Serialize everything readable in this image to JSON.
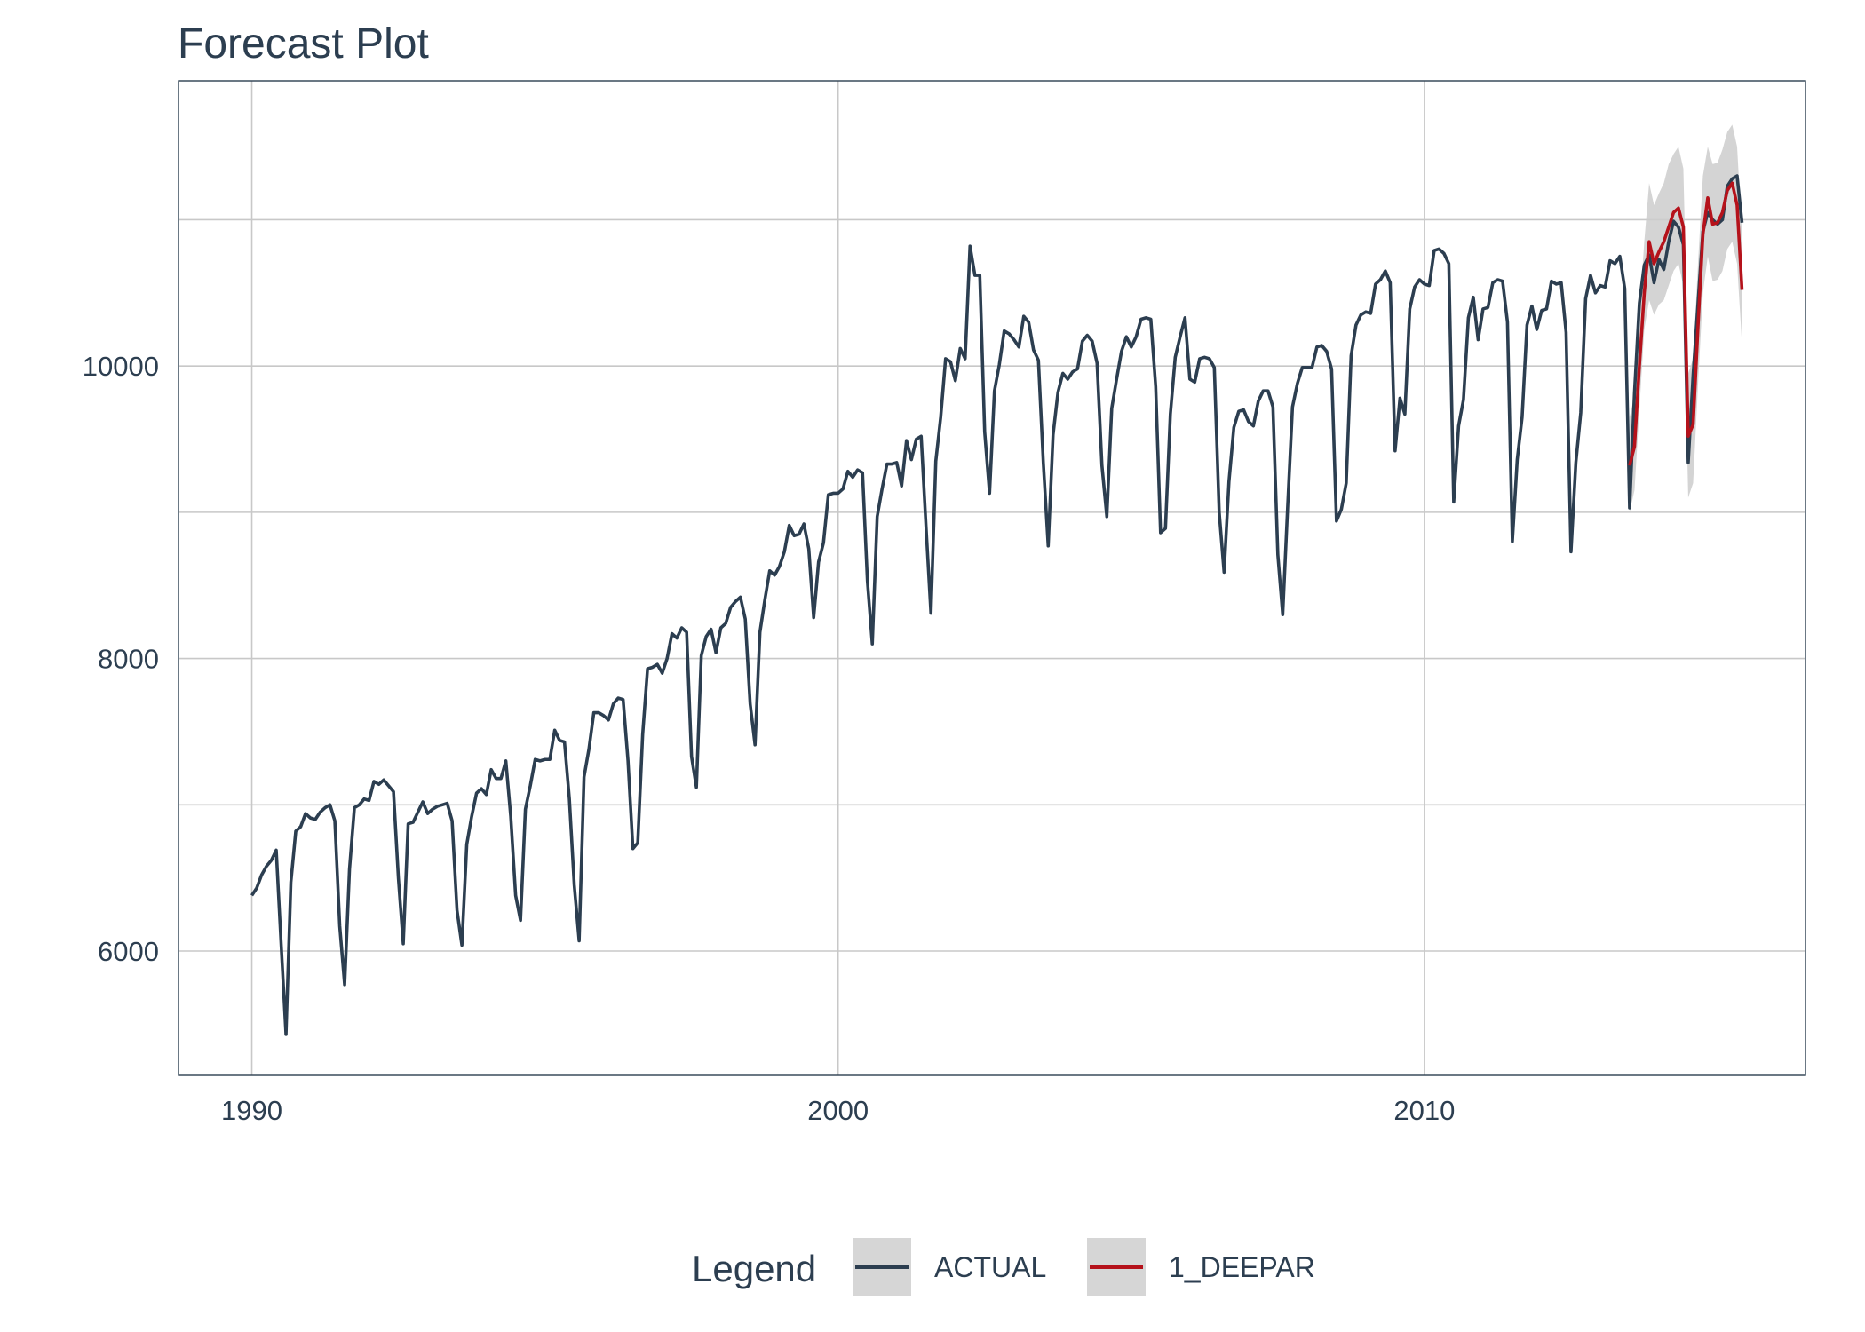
{
  "chart_data": {
    "type": "line",
    "title": "Forecast Plot",
    "xlabel": "",
    "ylabel": "",
    "xlim": [
      1988.75,
      2016.5
    ],
    "ylim": [
      5150,
      11950
    ],
    "x_ticks": [
      1990,
      2000,
      2010
    ],
    "x_tick_labels": [
      "1990",
      "2000",
      "2010"
    ],
    "y_ticks": [
      6000,
      8000,
      10000
    ],
    "y_tick_labels": [
      "6000",
      "8000",
      "10000"
    ],
    "y_minor_gridlines": [
      7000,
      9000,
      11000
    ],
    "grid": true,
    "legend": {
      "title": "Legend",
      "position": "bottom",
      "entries": [
        {
          "label": "ACTUAL",
          "color": "#2c3e50"
        },
        {
          "label": "1_DEEPAR",
          "color": "#b5121b"
        }
      ]
    },
    "series": [
      {
        "name": "ACTUAL",
        "color": "#2c3e50",
        "x_start": 1990.0,
        "x_step_months": 1,
        "values": [
          6380,
          6430,
          6520,
          6580,
          6620,
          6690,
          6050,
          5430,
          6470,
          6820,
          6850,
          6940,
          6910,
          6900,
          6950,
          6980,
          7000,
          6890,
          6170,
          5770,
          6560,
          6980,
          7000,
          7040,
          7030,
          7160,
          7140,
          7170,
          7130,
          7090,
          6500,
          6050,
          6870,
          6880,
          6950,
          7020,
          6940,
          6970,
          6990,
          7000,
          7010,
          6890,
          6280,
          6040,
          6730,
          6920,
          7080,
          7110,
          7070,
          7240,
          7180,
          7180,
          7300,
          6920,
          6380,
          6210,
          6970,
          7130,
          7310,
          7300,
          7310,
          7310,
          7510,
          7440,
          7430,
          7040,
          6450,
          6070,
          7190,
          7380,
          7630,
          7630,
          7610,
          7580,
          7690,
          7730,
          7720,
          7300,
          6700,
          6740,
          7480,
          7930,
          7940,
          7960,
          7900,
          8000,
          8170,
          8140,
          8210,
          8180,
          7330,
          7120,
          8020,
          8150,
          8200,
          8040,
          8210,
          8240,
          8350,
          8390,
          8420,
          8270,
          7690,
          7410,
          8180,
          8400,
          8600,
          8570,
          8630,
          8730,
          8910,
          8840,
          8850,
          8920,
          8750,
          8280,
          8660,
          8790,
          9120,
          9130,
          9130,
          9160,
          9280,
          9240,
          9290,
          9270,
          8530,
          8100,
          8970,
          9160,
          9330,
          9330,
          9340,
          9180,
          9490,
          9360,
          9500,
          9520,
          8900,
          8310,
          9350,
          9650,
          10050,
          10030,
          9900,
          10120,
          10050,
          10820,
          10620,
          10620,
          9550,
          9130,
          9830,
          10010,
          10240,
          10220,
          10180,
          10130,
          10340,
          10300,
          10110,
          10040,
          9340,
          8770,
          9530,
          9820,
          9950,
          9910,
          9960,
          9980,
          10170,
          10210,
          10170,
          10020,
          9320,
          8970,
          9710,
          9910,
          10100,
          10200,
          10130,
          10200,
          10320,
          10330,
          10320,
          9860,
          8860,
          8890,
          9670,
          10060,
          10200,
          10330,
          9910,
          9890,
          10050,
          10060,
          10050,
          9990,
          9000,
          8590,
          9210,
          9580,
          9690,
          9700,
          9620,
          9590,
          9760,
          9830,
          9830,
          9720,
          8710,
          8300,
          9030,
          9720,
          9880,
          9990,
          9990,
          9990,
          10130,
          10140,
          10100,
          9980,
          8940,
          9020,
          9200,
          10070,
          10280,
          10350,
          10370,
          10360,
          10560,
          10590,
          10650,
          10570,
          9420,
          9780,
          9670,
          10390,
          10540,
          10590,
          10560,
          10550,
          10790,
          10800,
          10770,
          10700,
          9070,
          9590,
          9770,
          10330,
          10470,
          10180,
          10390,
          10400,
          10570,
          10590,
          10580,
          10300,
          8800,
          9360,
          9650,
          10280,
          10410,
          10250,
          10380,
          10390,
          10580,
          10560,
          10570,
          10230,
          8730,
          9340,
          9680,
          10460,
          10620,
          10500,
          10550,
          10540,
          10720,
          10700,
          10750,
          10530,
          9030,
          9820,
          10430,
          10690,
          10760,
          10570,
          10730,
          10660,
          10850,
          10990,
          10950,
          10830,
          9340,
          9940,
          10430,
          10920,
          11050,
          11000,
          10970,
          11000,
          11230,
          11280,
          11300,
          10980
        ]
      },
      {
        "name": "1_DEEPAR",
        "color": "#b5121b",
        "x_start": 2013.5,
        "x_step_months": 1,
        "values": [
          9320,
          9450,
          10000,
          10500,
          10850,
          10700,
          10780,
          10850,
          10950,
          11050,
          11080,
          10950,
          9520,
          9600,
          10270,
          10900,
          11150,
          10970,
          10980,
          11050,
          11200,
          11250,
          11100,
          10520
        ],
        "lower": [
          9000,
          9150,
          9700,
          10250,
          10450,
          10350,
          10420,
          10450,
          10550,
          10650,
          10700,
          10550,
          9100,
          9200,
          9870,
          10500,
          10750,
          10580,
          10590,
          10650,
          10800,
          10850,
          10700,
          10150
        ],
        "upper": [
          9650,
          9800,
          10350,
          10850,
          11250,
          11100,
          11180,
          11250,
          11380,
          11450,
          11500,
          11350,
          9950,
          10050,
          10700,
          11300,
          11500,
          11380,
          11390,
          11480,
          11600,
          11650,
          11500,
          10900
        ],
        "interval_color": "#cccccc"
      }
    ]
  }
}
